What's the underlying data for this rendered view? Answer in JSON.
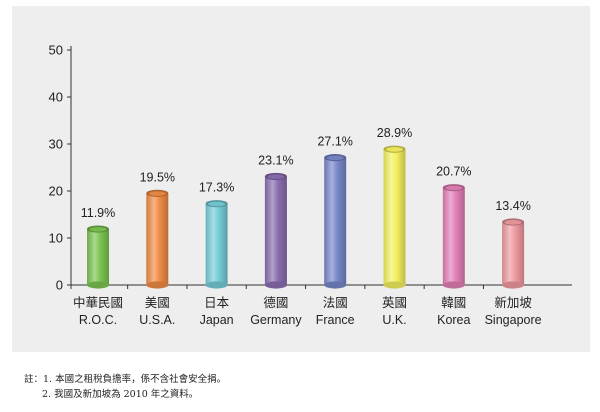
{
  "chart_data": {
    "type": "bar",
    "categories": [
      {
        "zh": "中華民國",
        "en": "R.O.C."
      },
      {
        "zh": "美國",
        "en": "U.S.A."
      },
      {
        "zh": "日本",
        "en": "Japan"
      },
      {
        "zh": "德國",
        "en": "Germany"
      },
      {
        "zh": "法國",
        "en": "France"
      },
      {
        "zh": "英國",
        "en": "U.K."
      },
      {
        "zh": "韓國",
        "en": "Korea"
      },
      {
        "zh": "新加坡",
        "en": "Singapore"
      }
    ],
    "values": [
      11.9,
      19.5,
      17.3,
      23.1,
      27.1,
      28.9,
      20.7,
      13.4
    ],
    "value_labels": [
      "11.9%",
      "19.5%",
      "17.3%",
      "23.1%",
      "27.1%",
      "28.9%",
      "20.7%",
      "13.4%"
    ],
    "bar_colors": [
      "#7cc451",
      "#ef8c45",
      "#74ccd7",
      "#8a6db0",
      "#7787c9",
      "#f4ef5d",
      "#e27fb6",
      "#ef9aa0"
    ],
    "ylim": [
      0,
      50
    ],
    "yticks": [
      "0",
      "10",
      "20",
      "30",
      "40",
      "50"
    ],
    "grid": false,
    "title": "",
    "xlabel": "",
    "ylabel": ""
  },
  "notes": {
    "line1": "註：1. 本國之租稅負擔率，係不含社會安全捐。",
    "line2": "2. 我國及新加坡為 2010 年之資料。"
  }
}
